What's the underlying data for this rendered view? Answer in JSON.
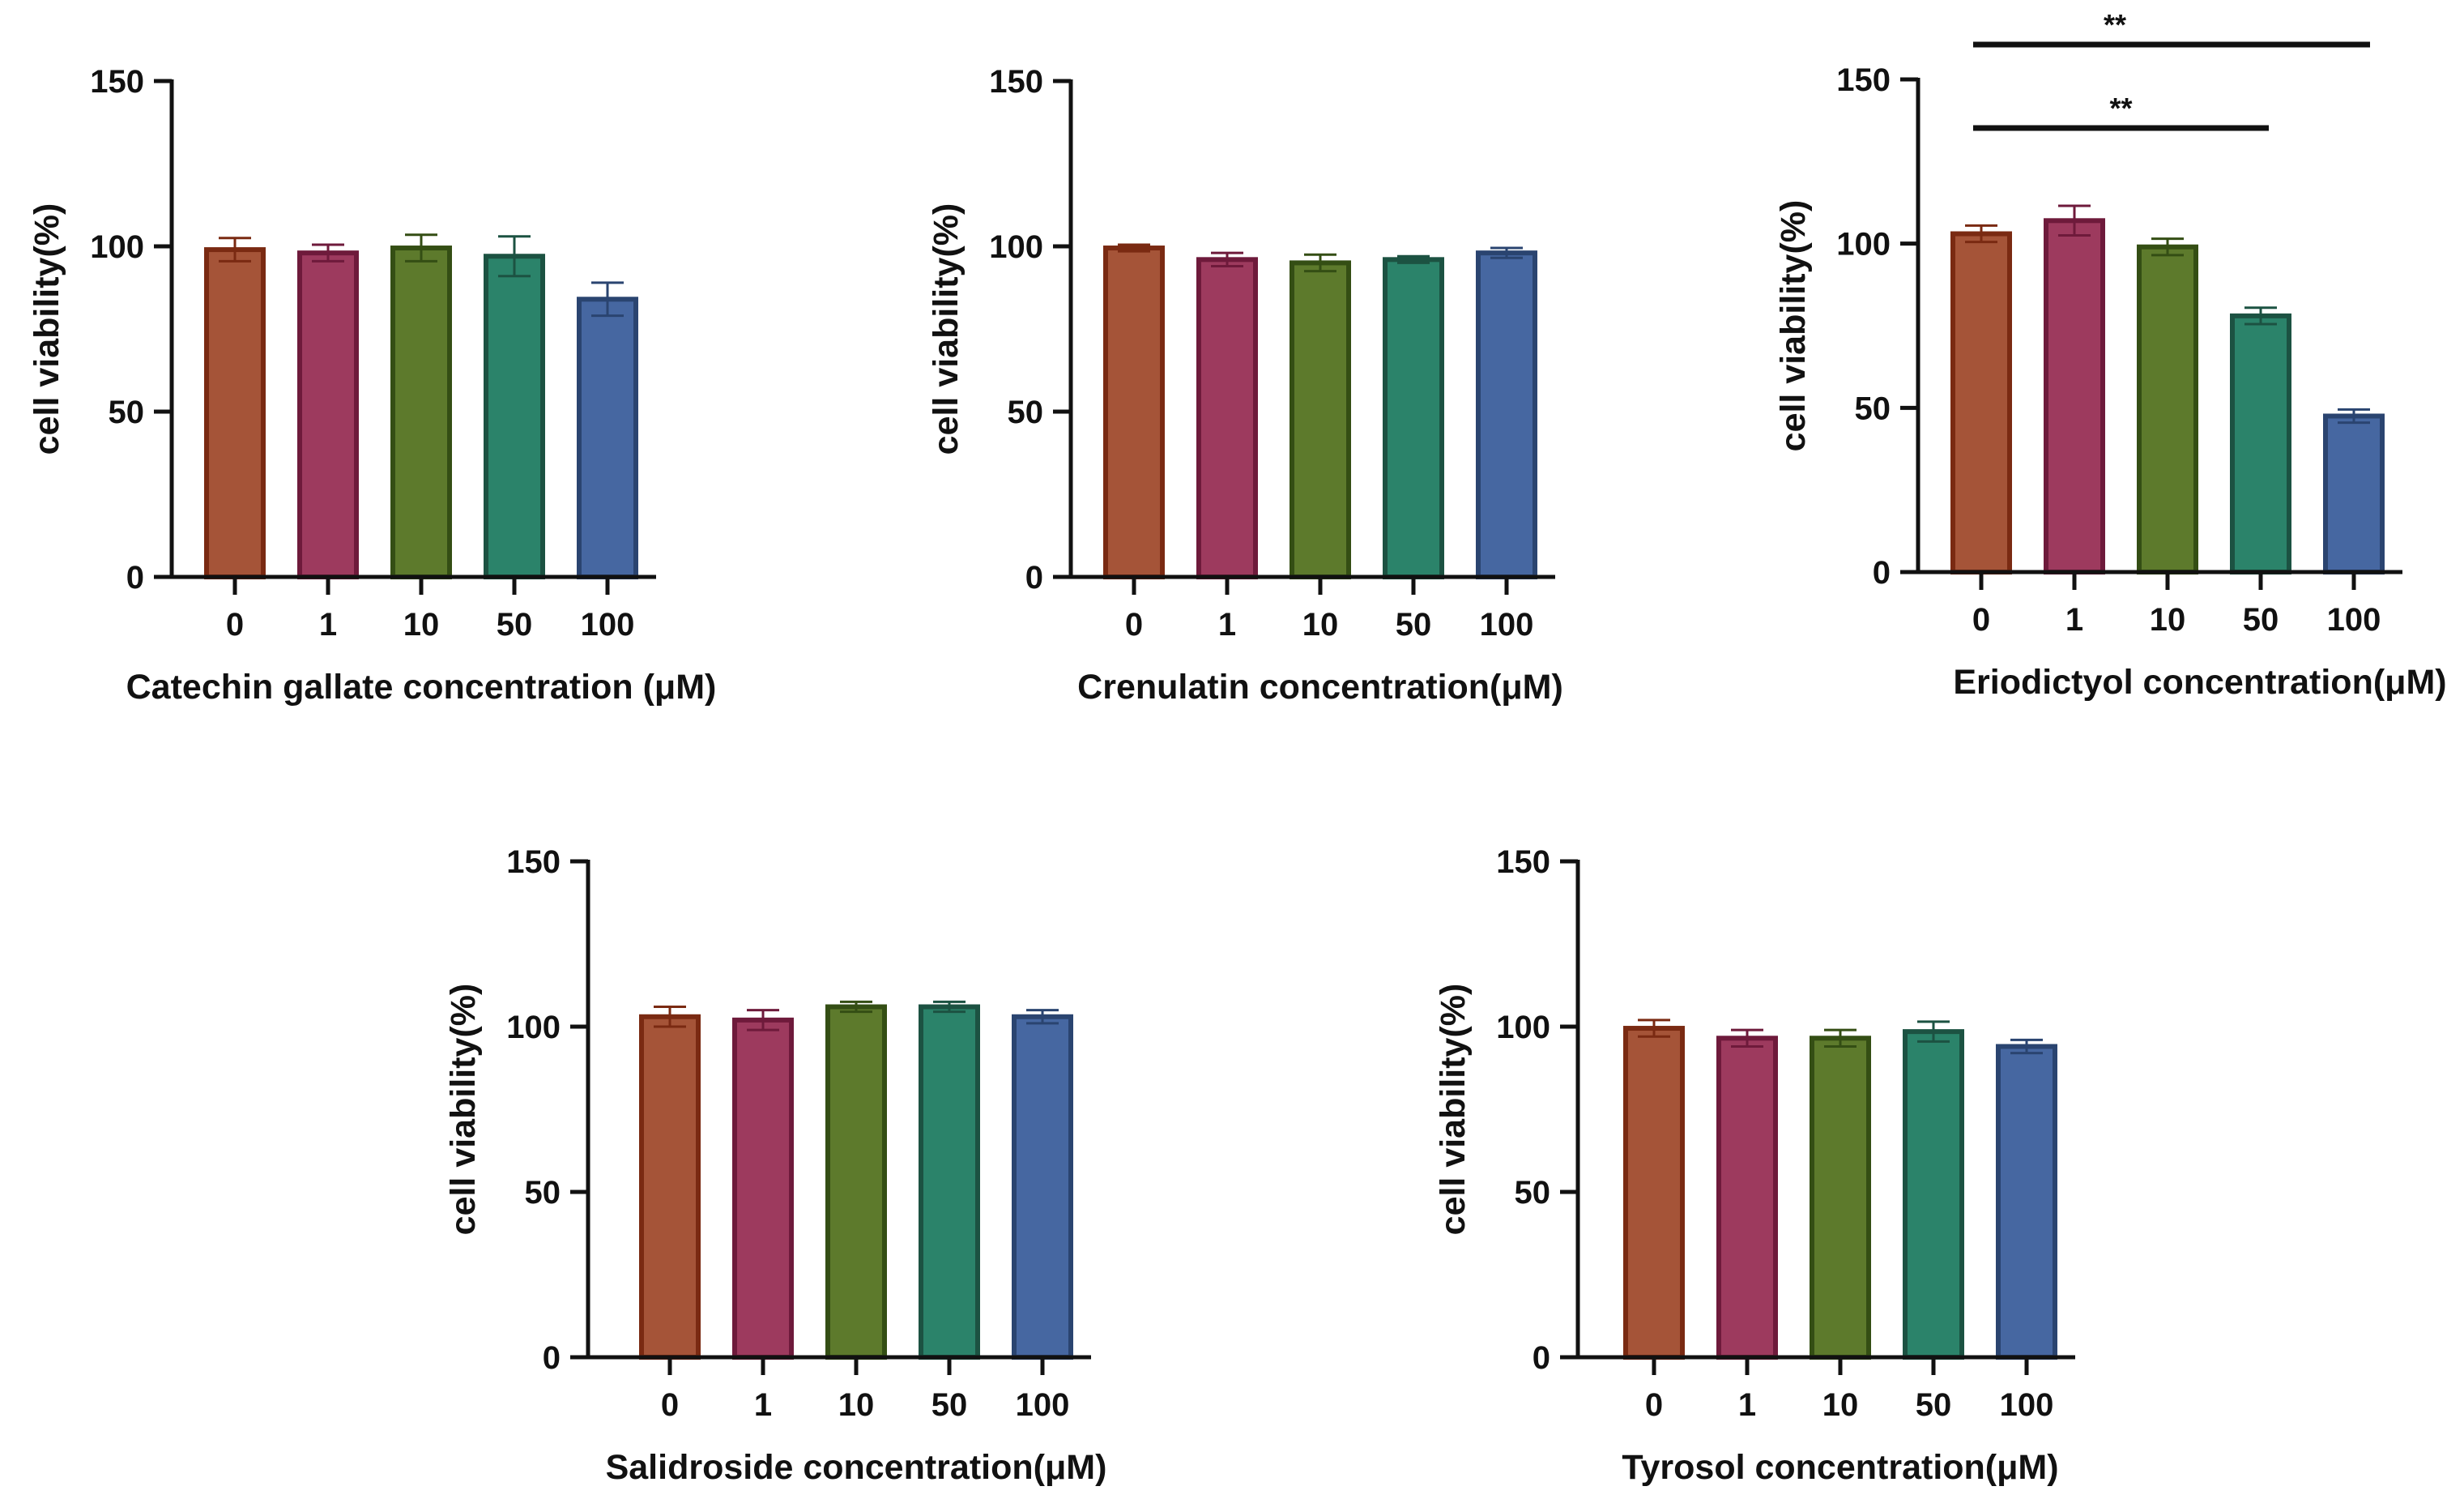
{
  "chart_data": [
    {
      "type": "bar",
      "title": "",
      "xlabel": "Catechin gallate concentration (μM)",
      "ylabel": "cell viability(%)",
      "categories": [
        "0",
        "1",
        "10",
        "50",
        "100"
      ],
      "values": [
        99,
        98,
        99.5,
        97,
        84
      ],
      "errors": [
        3.5,
        2.5,
        4,
        6,
        5
      ],
      "ylim": [
        0,
        150
      ],
      "yticks": [
        "0",
        "50",
        "100",
        "150"
      ],
      "significance": []
    },
    {
      "type": "bar",
      "title": "",
      "xlabel": "Crenulatin concentration(μM)",
      "ylabel": "cell viability(%)",
      "categories": [
        "0",
        "1",
        "10",
        "50",
        "100"
      ],
      "values": [
        99.5,
        96,
        95,
        96,
        98
      ],
      "errors": [
        1,
        2,
        2.5,
        1,
        1.5
      ],
      "ylim": [
        0,
        150
      ],
      "yticks": [
        "0",
        "50",
        "100",
        "150"
      ],
      "significance": []
    },
    {
      "type": "bar",
      "title": "",
      "xlabel": "Eriodictyol concentration(μM)",
      "ylabel": "cell viability(%)",
      "categories": [
        "0",
        "1",
        "10",
        "50",
        "100"
      ],
      "values": [
        103,
        107,
        99,
        78,
        47.5
      ],
      "errors": [
        2.5,
        4.5,
        2.5,
        2.5,
        2
      ],
      "ylim": [
        0,
        150
      ],
      "yticks": [
        "0",
        "50",
        "100",
        "150"
      ],
      "significance": [
        {
          "from": "0",
          "to": "50",
          "label": "**"
        },
        {
          "from": "0",
          "to": "100",
          "label": "**"
        }
      ]
    },
    {
      "type": "bar",
      "title": "",
      "xlabel": "Salidroside concentration(μM)",
      "ylabel": "cell viability(%)",
      "categories": [
        "0",
        "1",
        "10",
        "50",
        "100"
      ],
      "values": [
        103,
        102,
        106,
        106,
        103
      ],
      "errors": [
        3,
        3,
        1.5,
        1.5,
        2
      ],
      "ylim": [
        0,
        150
      ],
      "yticks": [
        "0",
        "50",
        "100",
        "150"
      ],
      "significance": []
    },
    {
      "type": "bar",
      "title": "",
      "xlabel": "Tyrosol concentration(μM)",
      "ylabel": "cell viability(%)",
      "categories": [
        "0",
        "1",
        "10",
        "50",
        "100"
      ],
      "values": [
        99.5,
        96.5,
        96.5,
        98.5,
        94
      ],
      "errors": [
        2.5,
        2.5,
        2.5,
        3,
        2
      ],
      "ylim": [
        0,
        150
      ],
      "yticks": [
        "0",
        "50",
        "100",
        "150"
      ],
      "significance": []
    }
  ],
  "colors": {
    "fills": [
      "#A55438",
      "#9D3A5E",
      "#5D7A2C",
      "#2B836A",
      "#4667A1"
    ],
    "edges": [
      "#7A2A12",
      "#6E1A3B",
      "#344E14",
      "#1C5242",
      "#2A4470"
    ]
  }
}
